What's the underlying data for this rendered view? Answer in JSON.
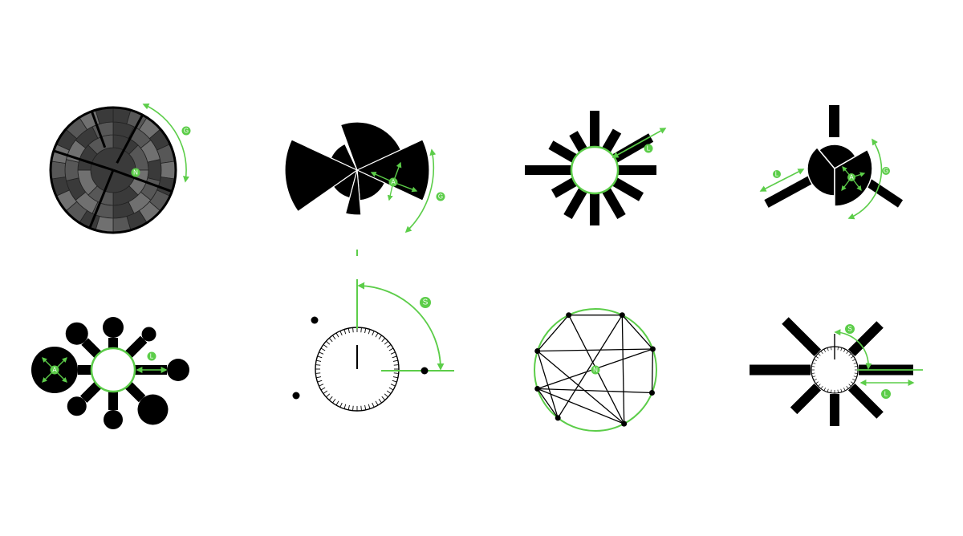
{
  "colors": {
    "accent": "#5ccd49",
    "ink": "#000000",
    "background": "#ffffff",
    "gray_dark": "#3a3a3a",
    "gray_mid": "#575757",
    "gray_light": "#707070"
  },
  "glyphs": [
    {
      "id": "sunburst",
      "labels": [
        "N",
        "G"
      ]
    },
    {
      "id": "rose-segments",
      "labels": [
        "A",
        "G"
      ]
    },
    {
      "id": "bar-star",
      "labels": [
        "L"
      ]
    },
    {
      "id": "three-arm-pie",
      "labels": [
        "A",
        "L",
        "G"
      ]
    },
    {
      "id": "bubble-star",
      "labels": [
        "A",
        "L"
      ]
    },
    {
      "id": "dial-points",
      "labels": [
        "S"
      ]
    },
    {
      "id": "circle-graph",
      "labels": [
        "N"
      ]
    },
    {
      "id": "dial-bar-star",
      "labels": [
        "S",
        "L"
      ]
    }
  ]
}
